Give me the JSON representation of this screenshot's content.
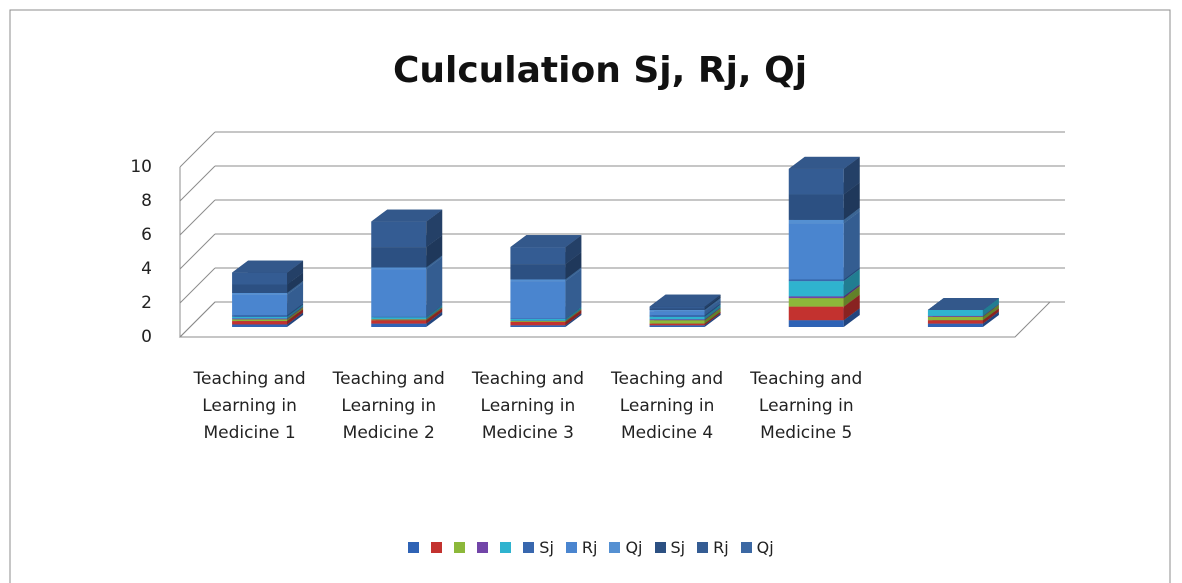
{
  "chart_data": {
    "type": "bar3d_stacked",
    "title": "Culculation Sj, Rj, Qj",
    "categories": [
      "Teaching and Learning in Medicine 1",
      "Teaching and Learning in Medicine 2",
      "Teaching and Learning in Medicine 3",
      "Teaching and Learning in Medicine 4",
      "Teaching and Learning in Medicine 5",
      null
    ],
    "series": [
      {
        "color": "#2f63b5",
        "values": [
          0.15,
          0.2,
          0.1,
          0.1,
          0.4,
          0.2
        ]
      },
      {
        "color": "#c3322f",
        "values": [
          0.2,
          0.2,
          0.2,
          0.1,
          0.8,
          0.2
        ]
      },
      {
        "color": "#8cb83a",
        "values": [
          0.1,
          0.05,
          0.05,
          0.2,
          0.5,
          0.2
        ]
      },
      {
        "color": "#7245a8",
        "values": [
          0.05,
          0.02,
          0.02,
          0.05,
          0.1,
          0.05
        ]
      },
      {
        "color": "#2fb3cf",
        "values": [
          0.1,
          0.1,
          0.1,
          0.15,
          0.9,
          0.35
        ]
      },
      {
        "name": "Sj",
        "color": "#3867ae",
        "values": [
          0.1,
          0.03,
          0.03,
          0.1,
          0.1,
          0
        ]
      },
      {
        "name": "Rj",
        "color": "#4a85cf",
        "values": [
          1.2,
          2.8,
          2.2,
          0.2,
          3.3,
          0
        ]
      },
      {
        "name": "Qj",
        "color": "#5590d2",
        "values": [
          0.1,
          0.1,
          0.1,
          0.1,
          0.2,
          0
        ]
      },
      {
        "name": "Sj",
        "color": "#2c5082",
        "values": [
          0.5,
          1.2,
          0.9,
          0.1,
          1.5,
          0
        ]
      },
      {
        "name": "Rj",
        "color": "#345c93",
        "values": [
          0.7,
          1.5,
          1.0,
          0.1,
          1.5,
          0
        ]
      },
      {
        "name": "Qj",
        "color": "#3c68a3",
        "values": [
          0,
          0,
          0,
          0,
          0,
          0
        ]
      }
    ],
    "ylim": [
      0,
      10
    ],
    "yticks": [
      0,
      2,
      4,
      6,
      8,
      10
    ],
    "grid": true
  }
}
